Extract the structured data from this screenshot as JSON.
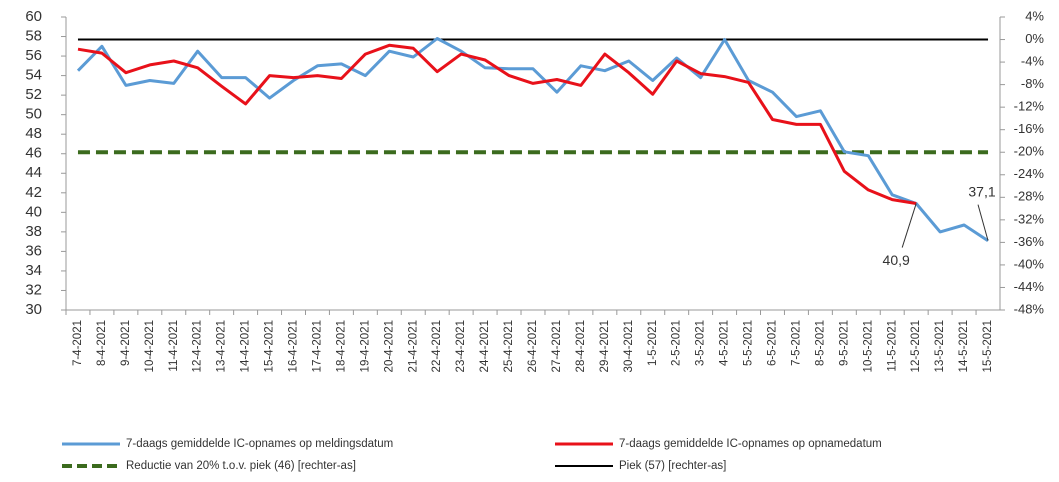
{
  "chart_data": {
    "type": "line",
    "categories": [
      "7-4-2021",
      "8-4-2021",
      "9-4-2021",
      "10-4-2021",
      "11-4-2021",
      "12-4-2021",
      "13-4-2021",
      "14-4-2021",
      "15-4-2021",
      "16-4-2021",
      "17-4-2021",
      "18-4-2021",
      "19-4-2021",
      "20-4-2021",
      "21-4-2021",
      "22-4-2021",
      "23-4-2021",
      "24-4-2021",
      "25-4-2021",
      "26-4-2021",
      "27-4-2021",
      "28-4-2021",
      "29-4-2021",
      "30-4-2021",
      "1-5-2021",
      "2-5-2021",
      "3-5-2021",
      "4-5-2021",
      "5-5-2021",
      "6-5-2021",
      "7-5-2021",
      "8-5-2021",
      "9-5-2021",
      "10-5-2021",
      "11-5-2021",
      "12-5-2021",
      "13-5-2021",
      "14-5-2021",
      "15-5-2021"
    ],
    "series": [
      {
        "name": "7-daags gemiddelde IC-opnames op meldingsdatum",
        "color": "#5b9bd5",
        "values": [
          54.5,
          57,
          53,
          53.5,
          53.2,
          56.5,
          53.8,
          53.8,
          51.7,
          53.5,
          55,
          55.2,
          54,
          56.5,
          55.9,
          57.8,
          56.5,
          54.8,
          54.7,
          54.7,
          52.3,
          55,
          54.5,
          55.5,
          53.5,
          55.8,
          53.8,
          57.7,
          53.5,
          52.3,
          49.8,
          50.4,
          46.2,
          45.8,
          41.8,
          40.9,
          38,
          38.7,
          37.1
        ],
        "value_labels": [
          null,
          null,
          null,
          null,
          null,
          null,
          null,
          null,
          null,
          null,
          null,
          null,
          null,
          null,
          null,
          null,
          null,
          null,
          null,
          null,
          null,
          null,
          null,
          null,
          null,
          null,
          null,
          null,
          null,
          null,
          null,
          null,
          null,
          null,
          null,
          null,
          null,
          null,
          "37,1"
        ]
      },
      {
        "name": "7-daags gemiddelde IC-opnames op opnamedatum",
        "color": "#e8111a",
        "values": [
          56.7,
          56.3,
          54.3,
          55.1,
          55.5,
          54.8,
          52.9,
          51.1,
          54,
          53.8,
          54,
          53.7,
          56.2,
          57.1,
          56.8,
          54.4,
          56.2,
          55.6,
          54,
          53.2,
          53.6,
          53,
          56.2,
          54.3,
          52.1,
          55.5,
          54.2,
          53.9,
          53.3,
          49.5,
          49,
          49,
          44.2,
          42.3,
          41.3,
          40.9,
          null,
          null,
          null
        ],
        "value_labels": [
          null,
          null,
          null,
          null,
          null,
          null,
          null,
          null,
          null,
          null,
          null,
          null,
          null,
          null,
          null,
          null,
          null,
          null,
          null,
          null,
          null,
          null,
          null,
          null,
          null,
          null,
          null,
          null,
          null,
          null,
          null,
          null,
          null,
          null,
          null,
          "40,9",
          null,
          null,
          null
        ]
      }
    ],
    "reference_lines": [
      {
        "name": "Reductie van 20% t.o.v. piek (46) [rechter-as]",
        "value": -20,
        "axis": "y2",
        "color": "#3b6b1e",
        "style": "dashed"
      },
      {
        "name": "Piek (57) [rechter-as]",
        "value": 0,
        "axis": "y2",
        "color": "#000000",
        "style": "solid"
      }
    ],
    "ylim": [
      30,
      60
    ],
    "yticks": [
      30,
      32,
      34,
      36,
      38,
      40,
      42,
      44,
      46,
      48,
      50,
      52,
      54,
      56,
      58,
      60
    ],
    "y2lim": [
      -48,
      4
    ],
    "y2ticks": [
      {
        "value": 4,
        "label": "4%"
      },
      {
        "value": 0,
        "label": "0%"
      },
      {
        "value": -4,
        "label": "-4%"
      },
      {
        "value": -8,
        "label": "-8%"
      },
      {
        "value": -12,
        "label": "-12%"
      },
      {
        "value": -16,
        "label": "-16%"
      },
      {
        "value": -20,
        "label": "-20%"
      },
      {
        "value": -24,
        "label": "-24%"
      },
      {
        "value": -28,
        "label": "-28%"
      },
      {
        "value": -32,
        "label": "-32%"
      },
      {
        "value": -36,
        "label": "-36%"
      },
      {
        "value": -40,
        "label": "-40%"
      },
      {
        "value": -44,
        "label": "-44%"
      },
      {
        "value": -48,
        "label": "-48%"
      }
    ],
    "grid": false
  }
}
